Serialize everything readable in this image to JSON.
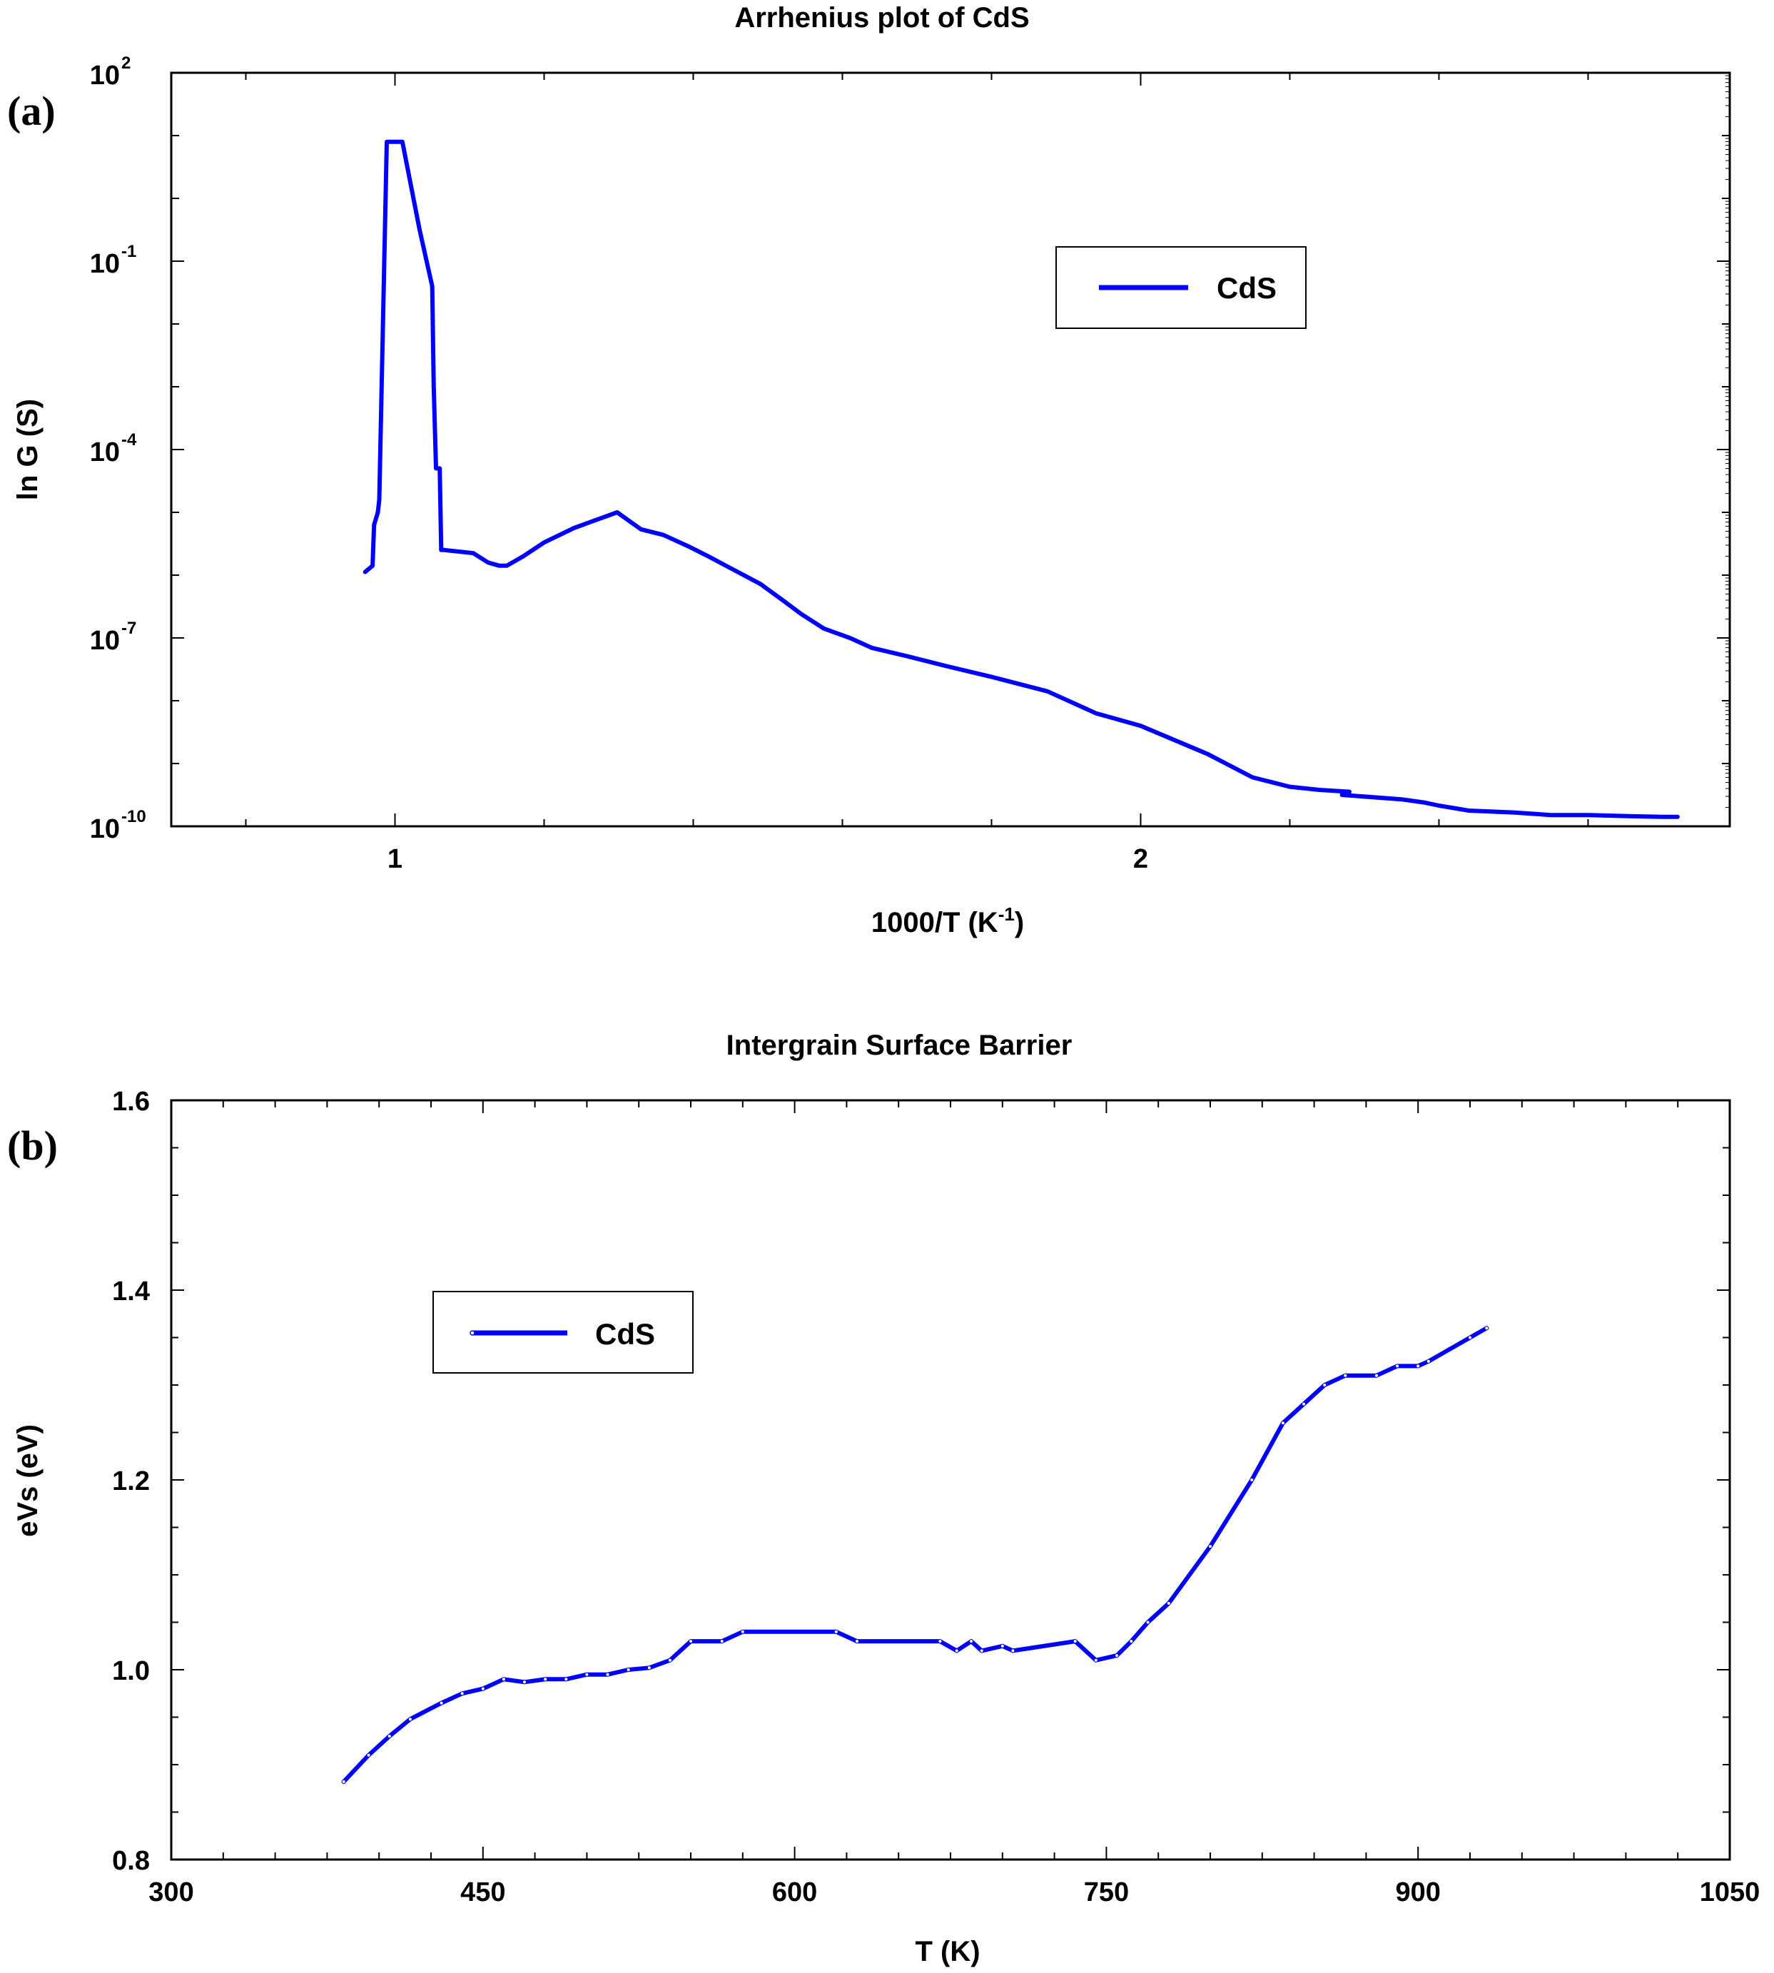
{
  "chart_data": [
    {
      "type": "line",
      "panel_label": "(a)",
      "title": "Arrhenius plot of CdS",
      "xlabel": "1000/T (K",
      "xlabel_sup": "-1",
      "xlabel_end": ")",
      "ylabel": "ln G (S)",
      "xlim": [
        0.7,
        2.79
      ],
      "ylim_log10": [
        -10,
        2
      ],
      "yscale": "log",
      "x_ticks": [
        {
          "v": 1,
          "label": "1"
        },
        {
          "v": 2,
          "label": "2"
        }
      ],
      "y_ticks": [
        {
          "v": 2,
          "base": "10",
          "exp": "2"
        },
        {
          "v": -1,
          "base": "10",
          "exp": "-1"
        },
        {
          "v": -4,
          "base": "10",
          "exp": "-4"
        },
        {
          "v": -7,
          "base": "10",
          "exp": "-7"
        },
        {
          "v": -10,
          "base": "10",
          "exp": "-10"
        }
      ],
      "legend": {
        "position": "upper right",
        "entries": [
          "CdS"
        ]
      },
      "grid": false,
      "series": [
        {
          "name": "CdS",
          "color": "#0000ff",
          "x": [
            0.96,
            0.97,
            0.972,
            0.977,
            0.979,
            0.98,
            0.989,
            1.01,
            1.033,
            1.05,
            1.052,
            1.055,
            1.06,
            1.062,
            1.066,
            1.105,
            1.125,
            1.14,
            1.15,
            1.172,
            1.2,
            1.24,
            1.27,
            1.298,
            1.33,
            1.36,
            1.395,
            1.42,
            1.455,
            1.49,
            1.52,
            1.545,
            1.575,
            1.61,
            1.64,
            1.69,
            1.74,
            1.8,
            1.875,
            1.94,
            2.0,
            2.04,
            2.09,
            2.15,
            2.2,
            2.24,
            2.28,
            2.27,
            2.35,
            2.38,
            2.4,
            2.44,
            2.5,
            2.55,
            2.6,
            2.66,
            2.7,
            2.72
          ],
          "y_log10": [
            -5.95,
            -5.85,
            -5.2,
            -5.0,
            -4.8,
            -4.2,
            0.9,
            0.9,
            -0.5,
            -1.4,
            -3.0,
            -4.3,
            -4.3,
            -5.6,
            -5.6,
            -5.65,
            -5.8,
            -5.85,
            -5.85,
            -5.7,
            -5.48,
            -5.25,
            -5.12,
            -5.0,
            -5.27,
            -5.36,
            -5.55,
            -5.7,
            -5.92,
            -6.14,
            -6.4,
            -6.62,
            -6.85,
            -7.0,
            -7.16,
            -7.3,
            -7.45,
            -7.62,
            -7.85,
            -8.2,
            -8.4,
            -8.6,
            -8.85,
            -9.22,
            -9.37,
            -9.42,
            -9.45,
            -9.5,
            -9.57,
            -9.62,
            -9.67,
            -9.75,
            -9.78,
            -9.82,
            -9.82,
            -9.84,
            -9.85,
            -9.85
          ]
        }
      ]
    },
    {
      "type": "line",
      "panel_label": "(b)",
      "title": "Intergrain Surface Barrier",
      "xlabel": "T (K)",
      "ylabel": "eVs (eV)",
      "xlim": [
        300,
        1050
      ],
      "ylim": [
        0.8,
        1.6
      ],
      "x_ticks": [
        {
          "v": 300,
          "label": "300"
        },
        {
          "v": 450,
          "label": "450"
        },
        {
          "v": 600,
          "label": "600"
        },
        {
          "v": 750,
          "label": "750"
        },
        {
          "v": 900,
          "label": "900"
        },
        {
          "v": 1050,
          "label": "1050"
        }
      ],
      "y_ticks": [
        {
          "v": 0.8,
          "label": "0.8"
        },
        {
          "v": 1.0,
          "label": "1.0"
        },
        {
          "v": 1.2,
          "label": "1.2"
        },
        {
          "v": 1.4,
          "label": "1.4"
        },
        {
          "v": 1.6,
          "label": "1.6"
        }
      ],
      "legend": {
        "position": "upper left",
        "entries": [
          "CdS"
        ]
      },
      "grid": false,
      "series": [
        {
          "name": "CdS",
          "color": "#0000ff",
          "x": [
            383,
            395,
            405,
            415,
            430,
            440,
            450,
            460,
            470,
            480,
            490,
            500,
            510,
            520,
            530,
            540,
            550,
            565,
            575,
            620,
            630,
            670,
            678,
            685,
            690,
            700,
            705,
            735,
            745,
            755,
            762,
            770,
            780,
            800,
            820,
            835,
            845,
            855,
            865,
            880,
            890,
            900,
            905,
            925,
            933
          ],
          "y": [
            0.882,
            0.91,
            0.93,
            0.948,
            0.965,
            0.975,
            0.98,
            0.99,
            0.987,
            0.99,
            0.99,
            0.995,
            0.995,
            1.0,
            1.002,
            1.01,
            1.03,
            1.03,
            1.04,
            1.04,
            1.03,
            1.03,
            1.02,
            1.03,
            1.02,
            1.025,
            1.02,
            1.03,
            1.01,
            1.015,
            1.03,
            1.05,
            1.07,
            1.13,
            1.2,
            1.26,
            1.28,
            1.3,
            1.31,
            1.31,
            1.32,
            1.32,
            1.325,
            1.35,
            1.36
          ]
        }
      ]
    }
  ]
}
